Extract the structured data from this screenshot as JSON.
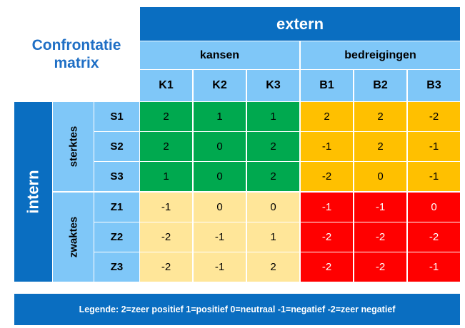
{
  "title": {
    "line1": "Confrontatie",
    "line2": "matrix"
  },
  "extern_label": "extern",
  "intern_label": "intern",
  "groups": {
    "kansen": "kansen",
    "bedreigingen": "bedreigingen"
  },
  "columns": [
    "K1",
    "K2",
    "K3",
    "B1",
    "B2",
    "B3"
  ],
  "subgroups": {
    "sterktes": "sterktes",
    "zwaktes": "zwaktes"
  },
  "rows": [
    {
      "label": "S1",
      "values": [
        "2",
        "1",
        "1",
        "2",
        "2",
        "-2"
      ]
    },
    {
      "label": "S2",
      "values": [
        "2",
        "0",
        "2",
        "-1",
        "2",
        "-1"
      ]
    },
    {
      "label": "S3",
      "values": [
        "1",
        "0",
        "2",
        "-2",
        "0",
        "-1"
      ]
    },
    {
      "label": "Z1",
      "values": [
        "-1",
        "0",
        "0",
        "-1",
        "-1",
        "0"
      ]
    },
    {
      "label": "Z2",
      "values": [
        "-2",
        "-1",
        "1",
        "-2",
        "-2",
        "-2"
      ]
    },
    {
      "label": "Z3",
      "values": [
        "-2",
        "-1",
        "2",
        "-2",
        "-2",
        "-1"
      ]
    }
  ],
  "legend": "Legende: 2=zeer positief  1=positief   0=neutraal  -1=negatief   -2=zeer negatief",
  "colors": {
    "header_dark": "#0A6EC1",
    "header_light": "#7FC7F8",
    "sterktes_kansen": "#00A94F",
    "sterktes_bedreigingen": "#FFC000",
    "zwaktes_kansen": "#FFE699",
    "zwaktes_bedreigingen": "#FF0000"
  }
}
